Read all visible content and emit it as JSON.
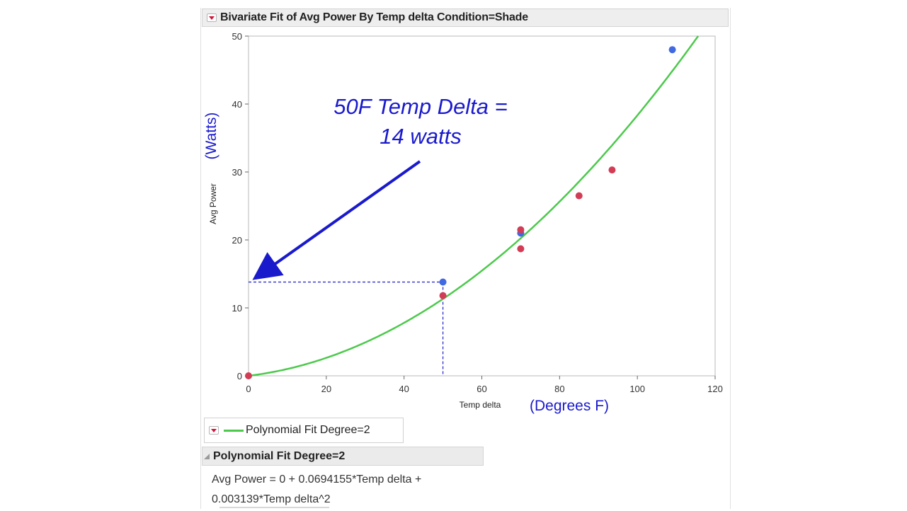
{
  "report": {
    "title": "Bivariate Fit of Avg Power By Temp delta Condition=Shade",
    "legend_label": "Polynomial Fit Degree=2",
    "fit_section_title": "Polynomial Fit Degree=2",
    "equation_line1": "Avg Power = 0 + 0.0694155*Temp delta +",
    "equation_line2": "0.003139*Temp delta^2",
    "colors": {
      "fit_line": "#4cc94c",
      "point_blue": "#4169e1",
      "point_red": "#d23c55",
      "annotation": "#1a1acd",
      "menu_triangle": "#d2143a"
    },
    "icons": [
      "red-triangle-menu-icon",
      "disclosure-triangle-icon"
    ]
  },
  "chart_data": {
    "type": "scatter",
    "title": "Bivariate Fit of Avg Power By Temp delta Condition=Shade",
    "xlabel": "Temp delta",
    "ylabel": "Avg Power",
    "xlim": [
      0,
      120
    ],
    "ylim": [
      0,
      50
    ],
    "xticks": [
      0,
      20,
      40,
      60,
      80,
      100,
      120
    ],
    "yticks": [
      0,
      10,
      20,
      30,
      40,
      50
    ],
    "grid": false,
    "series": [
      {
        "color": "blue",
        "points": [
          [
            50,
            13.8
          ],
          [
            70,
            21.0
          ],
          [
            109,
            48.0
          ]
        ]
      },
      {
        "color": "red",
        "points": [
          [
            0,
            0
          ],
          [
            50,
            11.8
          ],
          [
            70,
            21.5
          ],
          [
            70,
            18.7
          ],
          [
            85,
            26.5
          ],
          [
            93.5,
            30.3
          ]
        ]
      }
    ],
    "fit": {
      "name": "Polynomial Fit Degree=2",
      "intercept": 0,
      "b1": 0.0694155,
      "b2": 0.003139
    },
    "annotations": {
      "callout_line1": "50F Temp Delta =",
      "callout_line2": "14 watts",
      "y_units": "(Watts)",
      "x_units": "(Degrees F)",
      "reference_point": [
        50,
        13.8
      ]
    }
  }
}
